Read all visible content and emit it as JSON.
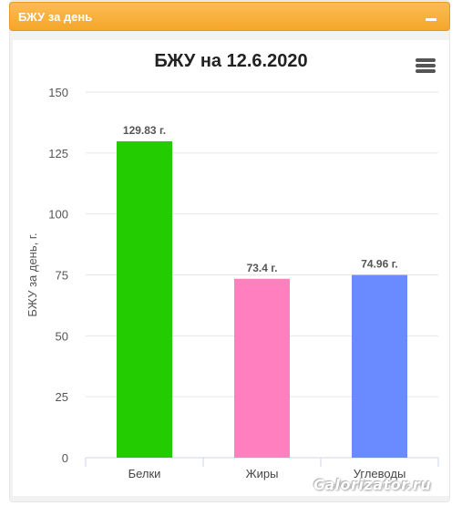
{
  "panel": {
    "title": "БЖУ за день"
  },
  "chart_data": {
    "type": "bar",
    "title": "БЖУ на 12.6.2020",
    "ylabel": "БЖУ за день, г.",
    "xlabel": "",
    "categories": [
      "Белки",
      "Жиры",
      "Углеводы"
    ],
    "values": [
      129.83,
      73.4,
      74.96
    ],
    "data_labels": [
      "129.83 г.",
      "73.4 г.",
      "74.96 г."
    ],
    "colors": [
      "#22cc00",
      "#ff7fbf",
      "#6a8bff"
    ],
    "ylim": [
      0,
      150
    ],
    "yticks": [
      0,
      25,
      50,
      75,
      100,
      125,
      150
    ],
    "grid": true,
    "legend": "none"
  },
  "watermark": "Calorizator.ru"
}
